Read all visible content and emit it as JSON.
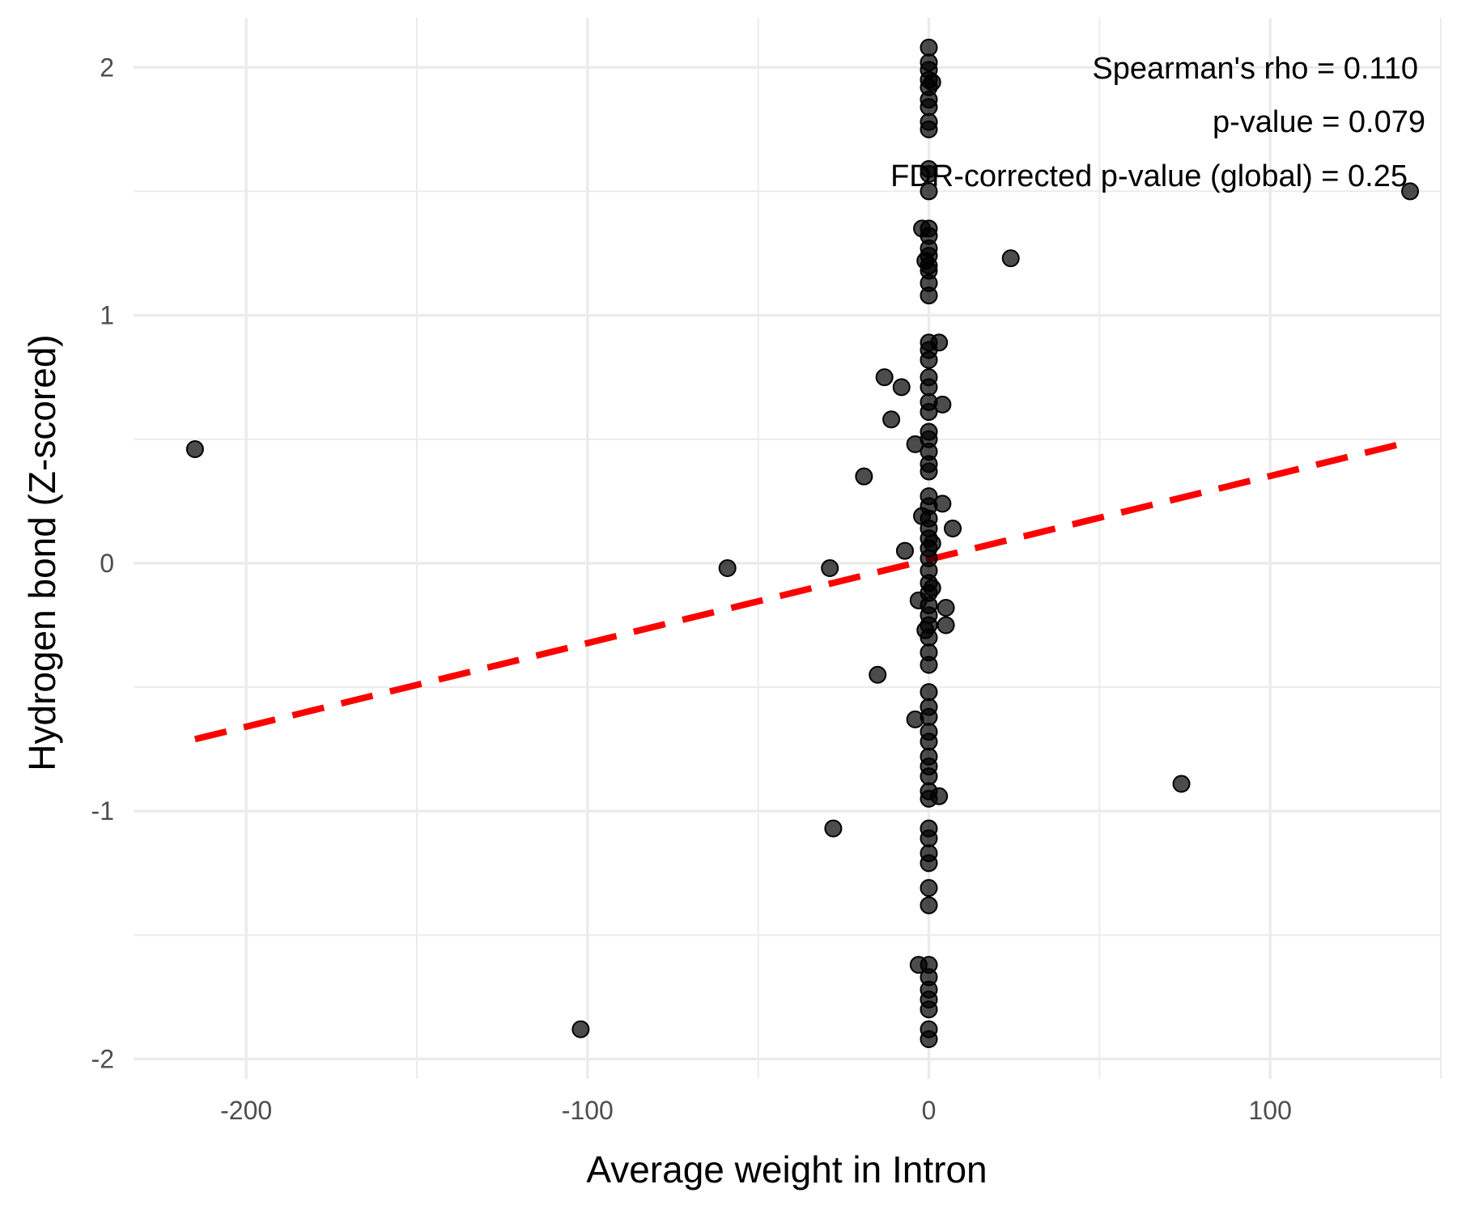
{
  "chart_data": {
    "type": "scatter",
    "xlabel": "Average weight in Intron",
    "ylabel": "Hydrogen bond (Z-scored)",
    "xlim": [
      -233,
      150
    ],
    "ylim": [
      -2.08,
      2.2
    ],
    "x_ticks": [
      -200,
      -100,
      0,
      100
    ],
    "x_tick_labels": [
      "-200",
      "-100",
      "0",
      "100"
    ],
    "y_ticks": [
      -2,
      -1,
      0,
      1,
      2
    ],
    "y_tick_labels": [
      "-2",
      "-1",
      "0",
      "1",
      "2"
    ],
    "x_minor": [
      -150,
      -50,
      50,
      150
    ],
    "y_minor": [
      -1.5,
      -0.5,
      0.5,
      1.5
    ],
    "grid": true,
    "annotations": [
      "Spearman's rho = 0.110",
      "p-value = 0.079",
      "FDR-corrected p-value (global) = 0.25"
    ],
    "trend_line": {
      "style": "dashed",
      "color": "#ff0000",
      "x": [
        -215,
        141
      ],
      "y": [
        -0.71,
        0.49
      ]
    },
    "points": [
      {
        "x": -215,
        "y": 0.46
      },
      {
        "x": -102,
        "y": -1.88
      },
      {
        "x": -59,
        "y": -0.02
      },
      {
        "x": -29,
        "y": -0.02
      },
      {
        "x": -28,
        "y": -1.07
      },
      {
        "x": -19,
        "y": 0.35
      },
      {
        "x": -15,
        "y": -0.45
      },
      {
        "x": -13,
        "y": 0.75
      },
      {
        "x": -11,
        "y": 0.58
      },
      {
        "x": -8,
        "y": 0.71
      },
      {
        "x": -7,
        "y": 0.05
      },
      {
        "x": -4,
        "y": 0.48
      },
      {
        "x": -4,
        "y": -0.63
      },
      {
        "x": -3,
        "y": -1.62
      },
      {
        "x": -3,
        "y": -0.15
      },
      {
        "x": -2,
        "y": 1.35
      },
      {
        "x": -2,
        "y": 0.19
      },
      {
        "x": -1,
        "y": 1.22
      },
      {
        "x": 3,
        "y": 0.89
      },
      {
        "x": 3,
        "y": -0.94
      },
      {
        "x": 4,
        "y": 0.64
      },
      {
        "x": 4,
        "y": 0.24
      },
      {
        "x": 5,
        "y": -0.18
      },
      {
        "x": 5,
        "y": -0.25
      },
      {
        "x": 7,
        "y": 0.14
      },
      {
        "x": 24,
        "y": 1.23
      },
      {
        "x": 74,
        "y": -0.89
      },
      {
        "x": 141,
        "y": 1.5
      },
      {
        "x": 0,
        "y": 2.08
      },
      {
        "x": 0,
        "y": 2.02
      },
      {
        "x": 0,
        "y": 1.99
      },
      {
        "x": 0,
        "y": 1.95
      },
      {
        "x": 0,
        "y": 1.92
      },
      {
        "x": 0,
        "y": 1.87
      },
      {
        "x": 0,
        "y": 1.84
      },
      {
        "x": 0,
        "y": 1.78
      },
      {
        "x": 0,
        "y": 1.75
      },
      {
        "x": 0,
        "y": 1.59
      },
      {
        "x": 0,
        "y": 1.57
      },
      {
        "x": 0,
        "y": 1.5
      },
      {
        "x": 0,
        "y": 1.35
      },
      {
        "x": 0,
        "y": 1.32
      },
      {
        "x": 0,
        "y": 1.27
      },
      {
        "x": 0,
        "y": 1.24
      },
      {
        "x": 0,
        "y": 1.2
      },
      {
        "x": 0,
        "y": 1.18
      },
      {
        "x": 0,
        "y": 1.13
      },
      {
        "x": 0,
        "y": 1.08
      },
      {
        "x": 0,
        "y": 0.89
      },
      {
        "x": 0,
        "y": 0.86
      },
      {
        "x": 0,
        "y": 0.82
      },
      {
        "x": 0,
        "y": 0.75
      },
      {
        "x": 0,
        "y": 0.71
      },
      {
        "x": 0,
        "y": 0.65
      },
      {
        "x": 0,
        "y": 0.61
      },
      {
        "x": 0,
        "y": 0.53
      },
      {
        "x": 0,
        "y": 0.5
      },
      {
        "x": 0,
        "y": 0.45
      },
      {
        "x": 0,
        "y": 0.4
      },
      {
        "x": 0,
        "y": 0.37
      },
      {
        "x": 0,
        "y": 0.27
      },
      {
        "x": 0,
        "y": 0.23
      },
      {
        "x": 0,
        "y": 0.18
      },
      {
        "x": 0,
        "y": 0.14
      },
      {
        "x": 0,
        "y": 0.1
      },
      {
        "x": 0,
        "y": 0.06
      },
      {
        "x": 0,
        "y": 0.02
      },
      {
        "x": 0,
        "y": -0.03
      },
      {
        "x": 0,
        "y": -0.08
      },
      {
        "x": 0,
        "y": -0.12
      },
      {
        "x": 0,
        "y": -0.17
      },
      {
        "x": 0,
        "y": -0.21
      },
      {
        "x": 0,
        "y": -0.25
      },
      {
        "x": 0,
        "y": -0.3
      },
      {
        "x": 0,
        "y": -0.36
      },
      {
        "x": 0,
        "y": -0.41
      },
      {
        "x": 0,
        "y": -0.52
      },
      {
        "x": 0,
        "y": -0.58
      },
      {
        "x": 0,
        "y": -0.62
      },
      {
        "x": 0,
        "y": -0.68
      },
      {
        "x": 0,
        "y": -0.72
      },
      {
        "x": 0,
        "y": -0.78
      },
      {
        "x": 0,
        "y": -0.82
      },
      {
        "x": 0,
        "y": -0.86
      },
      {
        "x": 0,
        "y": -0.92
      },
      {
        "x": 0,
        "y": -0.95
      },
      {
        "x": 0,
        "y": -1.07
      },
      {
        "x": 0,
        "y": -1.11
      },
      {
        "x": 0,
        "y": -1.17
      },
      {
        "x": 0,
        "y": -1.21
      },
      {
        "x": 0,
        "y": -1.31
      },
      {
        "x": 0,
        "y": -1.38
      },
      {
        "x": 0,
        "y": -1.62
      },
      {
        "x": 0,
        "y": -1.67
      },
      {
        "x": 0,
        "y": -1.72
      },
      {
        "x": 0,
        "y": -1.76
      },
      {
        "x": 0,
        "y": -1.8
      },
      {
        "x": 0,
        "y": -1.88
      },
      {
        "x": 0,
        "y": -1.92
      },
      {
        "x": 1,
        "y": 1.94
      },
      {
        "x": 1,
        "y": 0.08
      },
      {
        "x": 1,
        "y": -0.1
      },
      {
        "x": -1,
        "y": -0.27
      }
    ]
  }
}
